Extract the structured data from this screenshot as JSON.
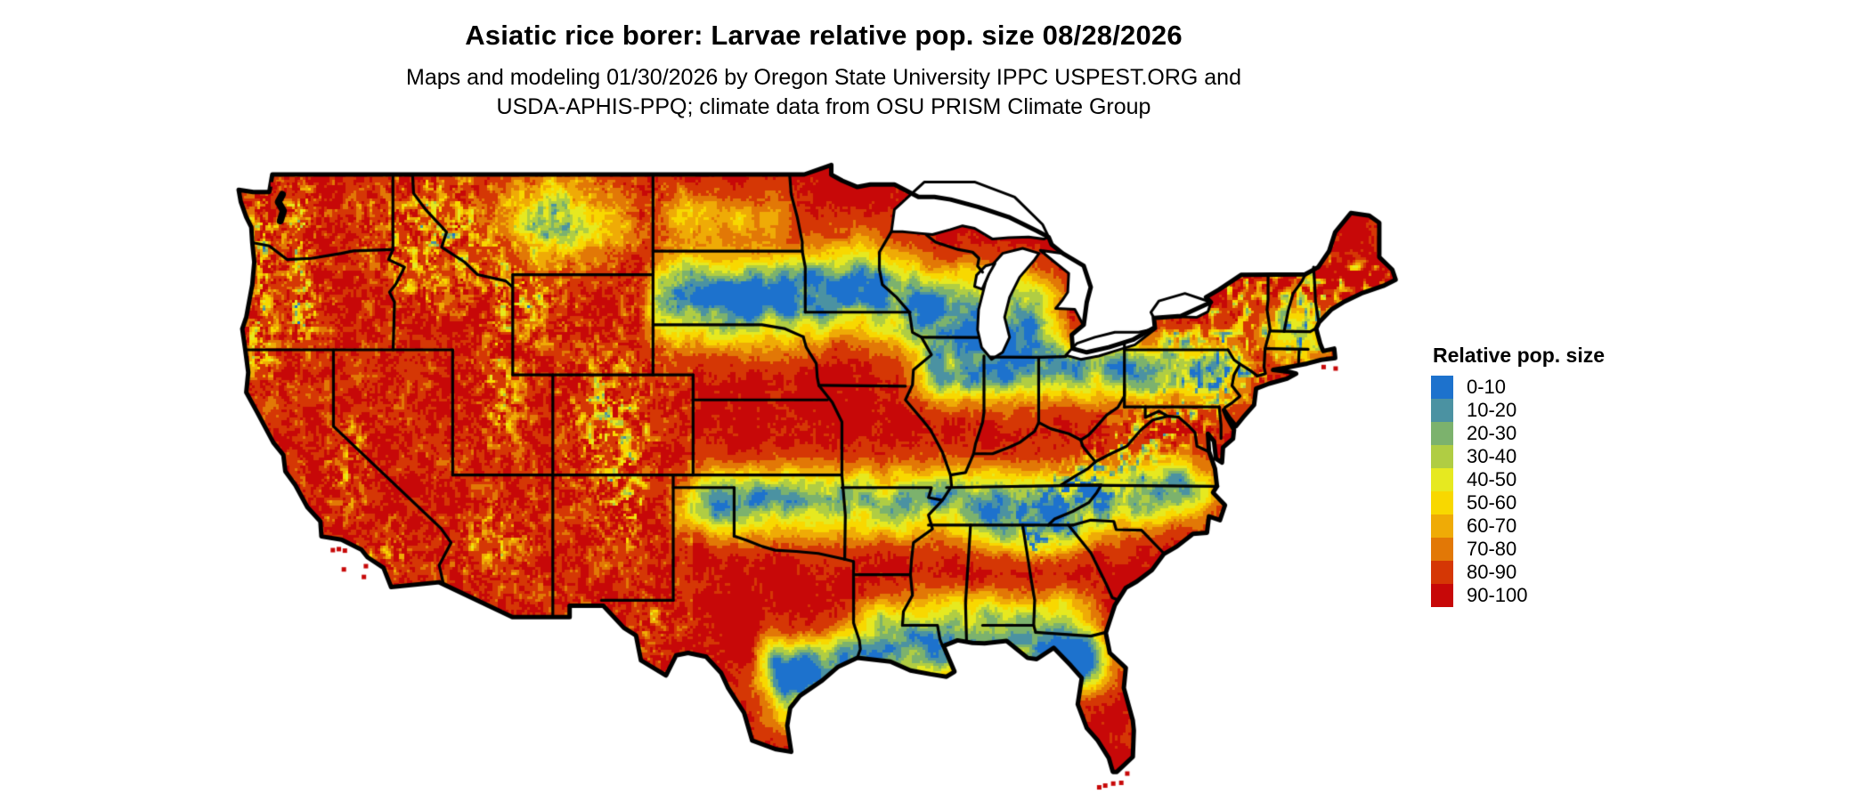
{
  "header": {
    "title": "Asiatic rice borer: Larvae relative pop. size 08/28/2026",
    "subtitle_line1": "Maps and modeling 01/30/2026 by Oregon State University IPPC USPEST.ORG and",
    "subtitle_line2": "USDA-APHIS-PPQ; climate data from OSU PRISM Climate Group"
  },
  "legend": {
    "title": "Relative pop. size",
    "items": [
      {
        "label": "0-10",
        "color": "#1d72cd"
      },
      {
        "label": "10-20",
        "color": "#4b92a2"
      },
      {
        "label": "20-30",
        "color": "#7cb26d"
      },
      {
        "label": "30-40",
        "color": "#b0cd43"
      },
      {
        "label": "40-50",
        "color": "#e6e920"
      },
      {
        "label": "50-60",
        "color": "#f8d800"
      },
      {
        "label": "60-70",
        "color": "#efab06"
      },
      {
        "label": "70-80",
        "color": "#e27806"
      },
      {
        "label": "80-90",
        "color": "#d53705"
      },
      {
        "label": "90-100",
        "color": "#c70808"
      }
    ]
  },
  "map": {
    "border_color": "#000000",
    "water_color": "#ffffff"
  }
}
